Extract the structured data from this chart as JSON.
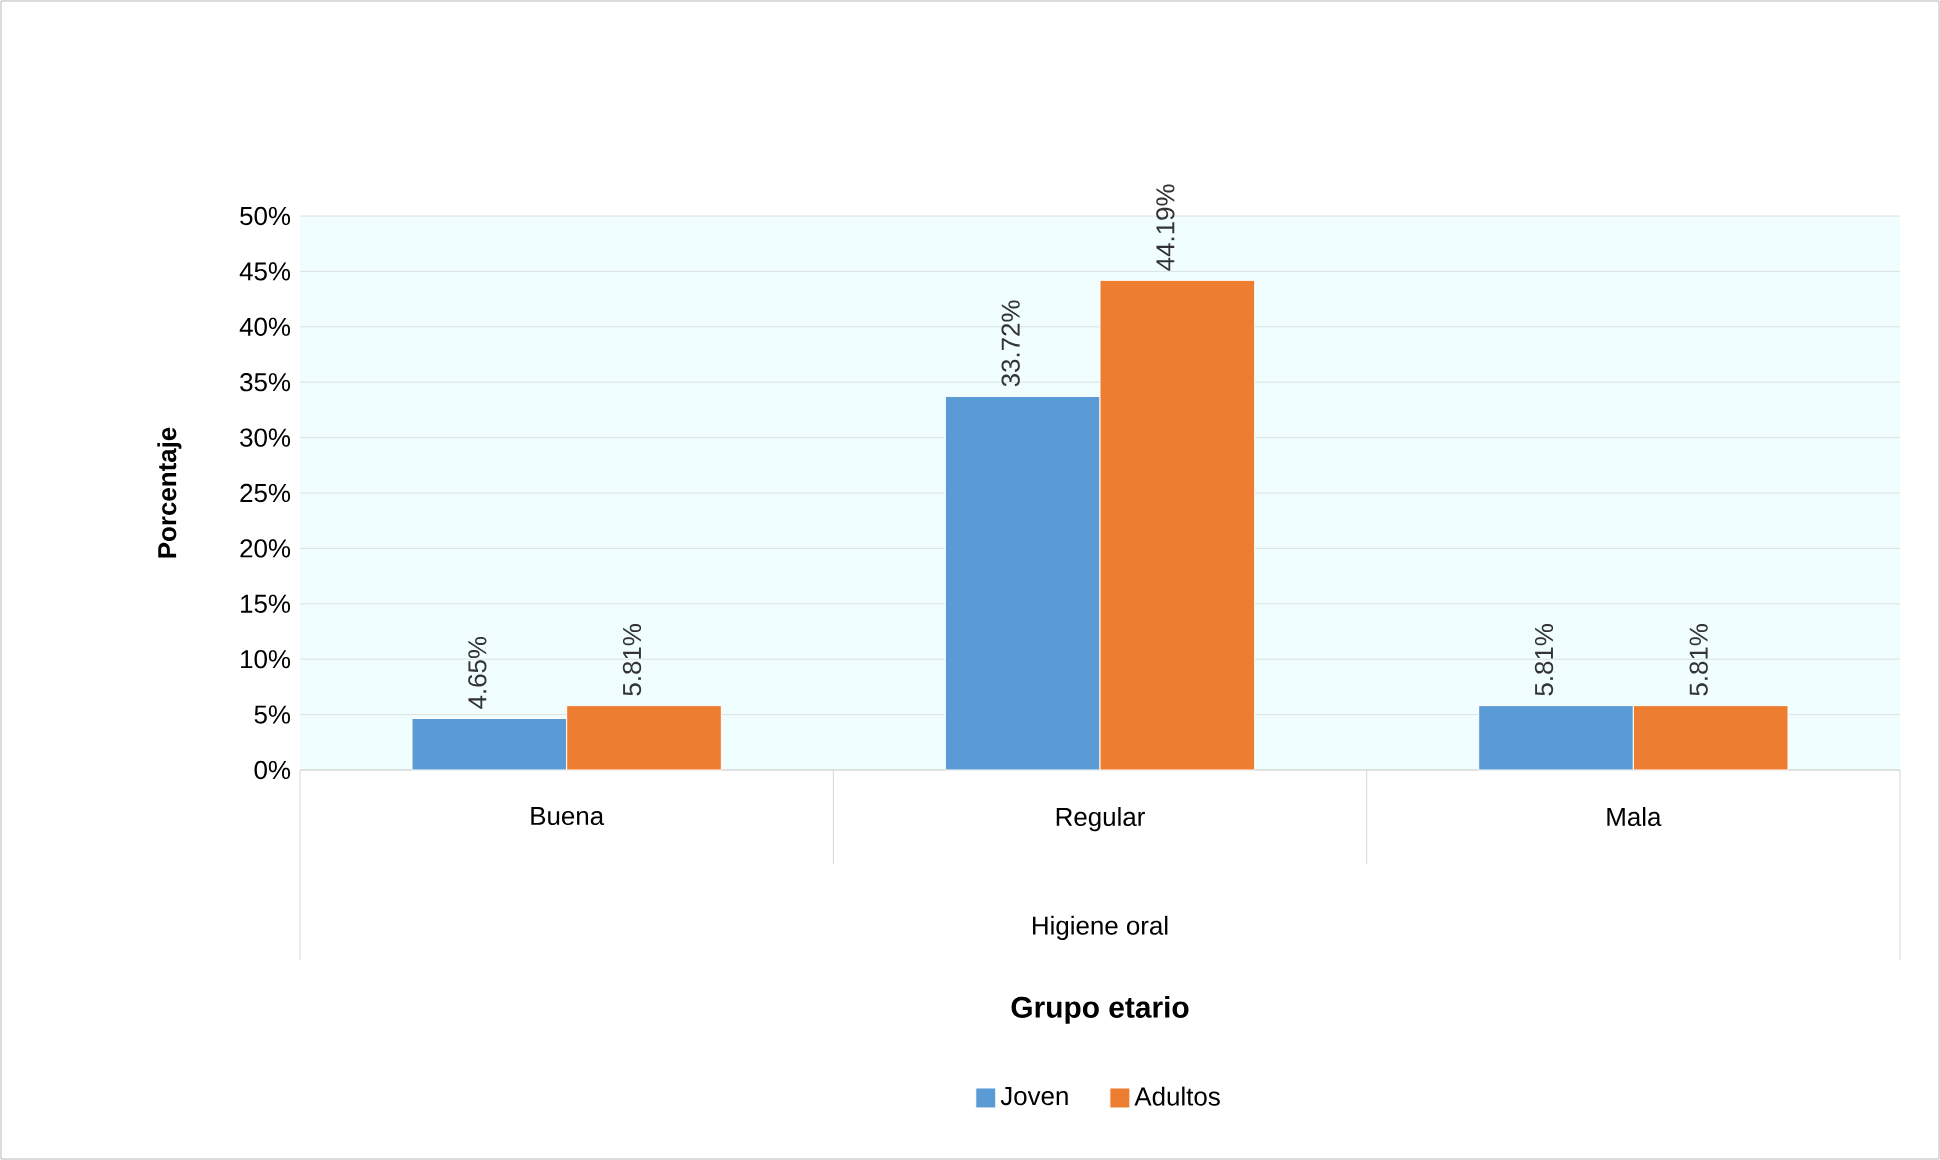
{
  "chart_data": {
    "type": "bar",
    "xlabel": "Higiene oral",
    "ylabel": "Porcentaje",
    "legend_title": "Grupo etario",
    "categories": [
      "Buena",
      "Regular",
      "Mala"
    ],
    "series": [
      {
        "name": "Joven",
        "color": "#5b9bd5",
        "values": [
          4.65,
          33.72,
          5.81
        ],
        "value_labels": [
          "4.65%",
          "33.72%",
          "5.81%"
        ]
      },
      {
        "name": "Adultos",
        "color": "#ed7d31",
        "values": [
          5.81,
          44.19,
          5.81
        ],
        "value_labels": [
          "5.81%",
          "44.19%",
          "5.81%"
        ]
      }
    ],
    "ylim": [
      0,
      50
    ],
    "yticks": [
      {
        "value": 0,
        "label": "0%"
      },
      {
        "value": 5,
        "label": "5%"
      },
      {
        "value": 10,
        "label": "10%"
      },
      {
        "value": 15,
        "label": "15%"
      },
      {
        "value": 20,
        "label": "20%"
      },
      {
        "value": 25,
        "label": "25%"
      },
      {
        "value": 30,
        "label": "30%"
      },
      {
        "value": 35,
        "label": "35%"
      },
      {
        "value": 40,
        "label": "40%"
      },
      {
        "value": 45,
        "label": "45%"
      },
      {
        "value": 50,
        "label": "50%"
      }
    ],
    "grid": "y",
    "legend": "bottom"
  }
}
